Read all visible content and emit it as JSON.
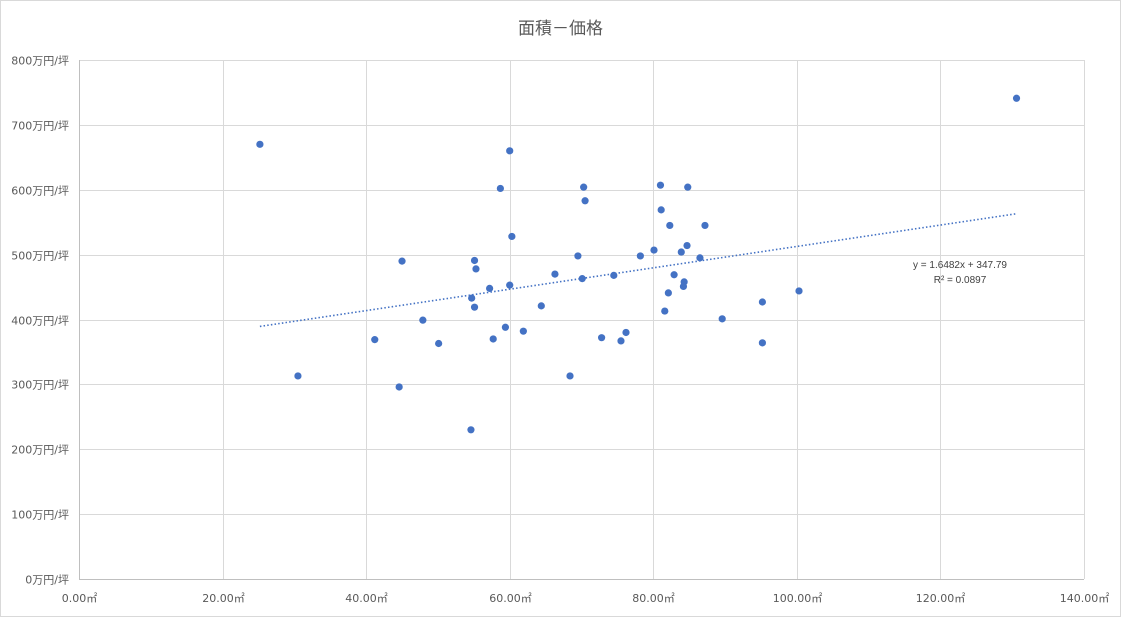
{
  "chart_data": {
    "type": "scatter",
    "title": "面積－価格",
    "xlabel": "",
    "ylabel": "",
    "xlim": [
      0,
      140
    ],
    "ylim": [
      0,
      800
    ],
    "x_ticks": [
      0,
      20,
      40,
      60,
      80,
      100,
      120,
      140
    ],
    "y_ticks": [
      0,
      100,
      200,
      300,
      400,
      500,
      600,
      700,
      800
    ],
    "x_tick_labels": [
      "0.00㎡",
      "20.00㎡",
      "40.00㎡",
      "60.00㎡",
      "80.00㎡",
      "100.00㎡",
      "120.00㎡",
      "140.00㎡"
    ],
    "y_tick_labels": [
      "0万円/坪",
      "100万円/坪",
      "200万円/坪",
      "300万円/坪",
      "400万円/坪",
      "500万円/坪",
      "600万円/坪",
      "700万円/坪",
      "800万円/坪"
    ],
    "grid": true,
    "legend": "none",
    "marker_color": "#4472c4",
    "trendline_color": "#4472c4",
    "series": [
      {
        "points": [
          [
            25.2,
            670
          ],
          [
            30.5,
            313
          ],
          [
            41.2,
            369
          ],
          [
            44.6,
            296
          ],
          [
            45.0,
            490
          ],
          [
            47.9,
            399
          ],
          [
            50.1,
            363
          ],
          [
            54.6,
            230
          ],
          [
            54.7,
            433
          ],
          [
            55.1,
            419
          ],
          [
            55.1,
            491
          ],
          [
            55.3,
            478
          ],
          [
            57.2,
            448
          ],
          [
            57.7,
            370
          ],
          [
            58.7,
            602
          ],
          [
            59.4,
            388
          ],
          [
            60.0,
            453
          ],
          [
            60.0,
            660
          ],
          [
            60.3,
            528
          ],
          [
            61.9,
            382
          ],
          [
            64.4,
            421
          ],
          [
            66.3,
            470
          ],
          [
            68.4,
            313
          ],
          [
            69.5,
            498
          ],
          [
            70.1,
            463
          ],
          [
            70.3,
            604
          ],
          [
            70.5,
            583
          ],
          [
            72.8,
            372
          ],
          [
            74.5,
            468
          ],
          [
            75.5,
            367
          ],
          [
            76.2,
            380
          ],
          [
            78.2,
            498
          ],
          [
            80.1,
            507
          ],
          [
            81.0,
            607
          ],
          [
            81.1,
            569
          ],
          [
            81.6,
            413
          ],
          [
            82.1,
            441
          ],
          [
            82.3,
            545
          ],
          [
            82.9,
            469
          ],
          [
            83.9,
            504
          ],
          [
            84.2,
            451
          ],
          [
            84.3,
            458
          ],
          [
            84.7,
            514
          ],
          [
            84.8,
            604
          ],
          [
            86.5,
            495
          ],
          [
            87.2,
            545
          ],
          [
            89.6,
            401
          ],
          [
            95.2,
            427
          ],
          [
            95.2,
            364
          ],
          [
            100.3,
            444
          ],
          [
            130.6,
            741
          ]
        ]
      }
    ],
    "trendline": {
      "slope": 1.6482,
      "intercept": 347.79,
      "x_range": [
        25.2,
        130.6
      ],
      "equation": "y = 1.6482x + 347.79",
      "r_squared": "R² = 0.0897"
    }
  }
}
